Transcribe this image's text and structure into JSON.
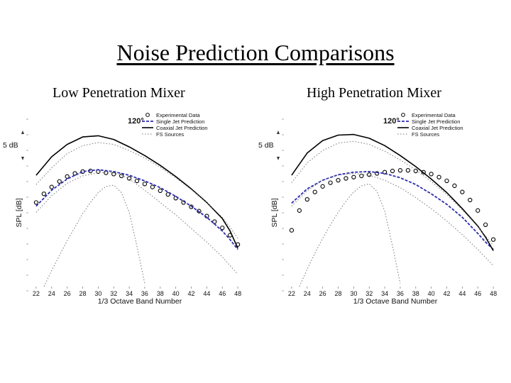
{
  "title": "Noise Prediction Comparisons",
  "chart_data": [
    {
      "type": "line",
      "panel_title": "Low Penetration Mixer",
      "annotation": "120°",
      "scale_label": "5 dB",
      "xlabel": "1/3 Octave Band Number",
      "ylabel": "SPL [dB]",
      "xticks": [
        22,
        24,
        26,
        28,
        30,
        32,
        34,
        36,
        38,
        40,
        42,
        44,
        46,
        48
      ],
      "xlim": [
        21,
        49
      ],
      "ylim": [
        0,
        28
      ],
      "legend_position": "top-right",
      "series": [
        {
          "name": "Experimental Data",
          "style": "circles",
          "x": [
            22,
            23,
            24,
            25,
            26,
            27,
            28,
            29,
            30,
            31,
            32,
            33,
            34,
            35,
            36,
            37,
            38,
            39,
            40,
            41,
            42,
            43,
            44,
            45,
            46,
            47,
            48
          ],
          "y": [
            13.6,
            15.0,
            16.1,
            17.0,
            17.8,
            18.3,
            18.6,
            18.7,
            18.6,
            18.4,
            18.2,
            17.9,
            17.5,
            17.1,
            16.6,
            16.1,
            15.5,
            14.9,
            14.3,
            13.6,
            12.9,
            12.2,
            11.4,
            10.5,
            9.5,
            8.3,
            6.8
          ]
        },
        {
          "name": "Single Jet Prediction",
          "style": "dashed",
          "x": [
            22,
            24,
            26,
            28,
            30,
            32,
            34,
            36,
            38,
            40,
            42,
            44,
            46,
            47,
            48
          ],
          "y": [
            13.0,
            15.6,
            17.4,
            18.6,
            18.9,
            18.6,
            18.0,
            17.1,
            16.0,
            14.6,
            13.0,
            11.2,
            9.0,
            7.6,
            6.0
          ]
        },
        {
          "name": "Coaxial Jet Prediction",
          "style": "solid",
          "x": [
            22,
            24,
            26,
            28,
            30,
            32,
            34,
            36,
            38,
            40,
            42,
            44,
            46,
            47,
            48
          ],
          "y": [
            18.0,
            21.0,
            23.0,
            24.2,
            24.4,
            23.8,
            22.6,
            21.2,
            19.6,
            17.8,
            15.8,
            13.6,
            11.0,
            9.0,
            6.2
          ]
        },
        {
          "name": "FS Sources",
          "style": "dotted",
          "x": [
            22,
            24,
            26,
            28,
            30,
            32,
            34,
            36,
            38,
            40,
            42,
            44,
            46,
            47,
            48
          ],
          "y": [
            16.5,
            19.2,
            21.5,
            22.8,
            23.3,
            23.0,
            22.0,
            20.8,
            19.3,
            17.6,
            15.7,
            13.6,
            11.2,
            9.6,
            7.8
          ]
        },
        {
          "name": "",
          "style": "dotted",
          "x": [
            22,
            24,
            26,
            28,
            30,
            31,
            32,
            33,
            34,
            36,
            38,
            40,
            42,
            44,
            46,
            48
          ],
          "y": [
            12.0,
            14.7,
            16.7,
            17.9,
            18.4,
            18.5,
            18.4,
            18.0,
            17.4,
            15.6,
            13.6,
            11.6,
            9.4,
            7.2,
            4.8,
            2.0
          ]
        },
        {
          "name": "",
          "style": "dotted",
          "x": [
            23,
            24,
            25,
            26,
            27,
            28,
            29,
            30,
            31,
            32,
            33,
            34,
            35,
            36
          ],
          "y": [
            0.0,
            2.6,
            5.0,
            7.4,
            9.6,
            11.8,
            13.6,
            15.2,
            16.2,
            16.4,
            15.2,
            12.0,
            6.5,
            0.5
          ]
        }
      ]
    },
    {
      "type": "line",
      "panel_title": "High Penetration Mixer",
      "annotation": "120°",
      "scale_label": "5 dB",
      "xlabel": "1/3 Octave Band Number",
      "ylabel": "SPL [dB]",
      "xticks": [
        22,
        24,
        26,
        28,
        30,
        32,
        34,
        36,
        38,
        40,
        42,
        44,
        46,
        48
      ],
      "xlim": [
        21,
        49
      ],
      "ylim": [
        0,
        28
      ],
      "legend_position": "top-right",
      "series": [
        {
          "name": "Experimental Data",
          "style": "circles",
          "x": [
            22,
            23,
            24,
            25,
            26,
            27,
            28,
            29,
            30,
            31,
            32,
            33,
            34,
            35,
            36,
            37,
            38,
            39,
            40,
            41,
            42,
            43,
            44,
            45,
            46,
            47,
            48
          ],
          "y": [
            9.1,
            12.3,
            14.1,
            15.3,
            16.2,
            16.8,
            17.2,
            17.5,
            17.7,
            17.9,
            18.1,
            18.3,
            18.5,
            18.7,
            18.8,
            18.8,
            18.7,
            18.5,
            18.2,
            17.7,
            17.1,
            16.3,
            15.3,
            14.0,
            12.3,
            10.0,
            7.6
          ]
        },
        {
          "name": "Single Jet Prediction",
          "style": "dashed",
          "x": [
            22,
            24,
            26,
            28,
            30,
            32,
            34,
            36,
            38,
            40,
            42,
            44,
            46,
            47,
            48
          ],
          "y": [
            13.5,
            15.8,
            17.2,
            18.1,
            18.5,
            18.6,
            18.3,
            17.6,
            16.5,
            15.0,
            13.3,
            11.2,
            8.6,
            7.2,
            6.0
          ]
        },
        {
          "name": "Coaxial Jet Prediction",
          "style": "solid",
          "x": [
            22,
            24,
            26,
            28,
            30,
            32,
            34,
            36,
            38,
            40,
            42,
            44,
            46,
            47,
            48
          ],
          "y": [
            18.0,
            21.6,
            23.6,
            24.5,
            24.6,
            24.0,
            22.8,
            21.2,
            19.4,
            17.4,
            15.2,
            12.6,
            9.8,
            8.0,
            5.8
          ]
        },
        {
          "name": "FS Sources",
          "style": "dotted",
          "x": [
            22,
            24,
            26,
            28,
            30,
            32,
            34,
            36,
            38,
            40,
            42,
            44,
            46,
            47,
            48
          ],
          "y": [
            16.8,
            20.0,
            22.0,
            23.2,
            23.5,
            23.0,
            21.9,
            20.5,
            18.9,
            17.0,
            14.9,
            12.4,
            9.7,
            8.2,
            6.6
          ]
        },
        {
          "name": "",
          "style": "dotted",
          "x": [
            22,
            24,
            26,
            28,
            30,
            32,
            34,
            36,
            38,
            40,
            42,
            44,
            46,
            48
          ],
          "y": [
            13.0,
            15.5,
            17.2,
            18.0,
            18.3,
            18.0,
            17.2,
            16.0,
            14.4,
            12.6,
            10.6,
            8.4,
            6.0,
            3.4
          ]
        },
        {
          "name": "",
          "style": "dotted",
          "x": [
            23,
            24,
            25,
            26,
            27,
            28,
            29,
            30,
            31,
            32,
            33,
            34,
            35,
            36
          ],
          "y": [
            0.0,
            2.8,
            5.4,
            7.8,
            10.0,
            12.0,
            13.8,
            15.3,
            16.3,
            16.6,
            15.4,
            12.2,
            6.6,
            0.5
          ]
        }
      ]
    }
  ]
}
